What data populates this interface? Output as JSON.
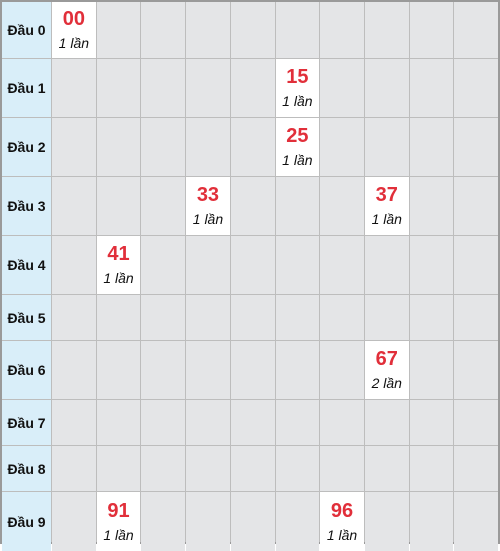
{
  "table": {
    "rows": [
      {
        "label": "Đầu 0",
        "cells": [
          {
            "col": 0,
            "number": "00",
            "count": "1 lần"
          }
        ]
      },
      {
        "label": "Đầu 1",
        "cells": [
          {
            "col": 5,
            "number": "15",
            "count": "1 lần"
          }
        ]
      },
      {
        "label": "Đầu 2",
        "cells": [
          {
            "col": 5,
            "number": "25",
            "count": "1 lần"
          }
        ]
      },
      {
        "label": "Đầu 3",
        "cells": [
          {
            "col": 3,
            "number": "33",
            "count": "1 lần"
          },
          {
            "col": 7,
            "number": "37",
            "count": "1 lần"
          }
        ]
      },
      {
        "label": "Đầu 4",
        "cells": [
          {
            "col": 1,
            "number": "41",
            "count": "1 lần"
          }
        ]
      },
      {
        "label": "Đầu 5",
        "cells": []
      },
      {
        "label": "Đầu 6",
        "cells": [
          {
            "col": 7,
            "number": "67",
            "count": "2 lần"
          }
        ]
      },
      {
        "label": "Đầu 7",
        "cells": []
      },
      {
        "label": "Đầu 8",
        "cells": []
      },
      {
        "label": "Đầu 9",
        "cells": [
          {
            "col": 1,
            "number": "91",
            "count": "1 lần"
          },
          {
            "col": 6,
            "number": "96",
            "count": "1 lần"
          }
        ]
      }
    ]
  },
  "colors": {
    "number": "#e12f3a",
    "header_bg": "#d9eef9",
    "cell_bg": "#e4e5e7",
    "hit_bg": "#ffffff"
  }
}
